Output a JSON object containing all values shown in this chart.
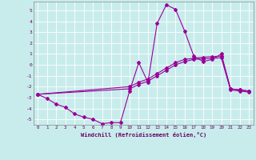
{
  "xlabel": "Windchill (Refroidissement éolien,°C)",
  "background_color": "#c8ecec",
  "line_color": "#990099",
  "grid_color": "#ffffff",
  "xlim": [
    -0.5,
    23.5
  ],
  "ylim": [
    -5.5,
    5.8
  ],
  "yticks": [
    -5,
    -4,
    -3,
    -2,
    -1,
    0,
    1,
    2,
    3,
    4,
    5
  ],
  "xticks": [
    0,
    1,
    2,
    3,
    4,
    5,
    6,
    7,
    8,
    9,
    10,
    11,
    12,
    13,
    14,
    15,
    16,
    17,
    18,
    19,
    20,
    21,
    22,
    23
  ],
  "series": [
    {
      "x": [
        0,
        1,
        2,
        3,
        4,
        5,
        6,
        7,
        8,
        9,
        10,
        11,
        12,
        13,
        14,
        15,
        16,
        17,
        18,
        19,
        20,
        21,
        22,
        23
      ],
      "y": [
        -2.7,
        -3.1,
        -3.6,
        -3.9,
        -4.5,
        -4.8,
        -5.0,
        -5.4,
        -5.3,
        -5.3,
        -2.4,
        0.2,
        -1.6,
        3.8,
        5.5,
        5.1,
        3.1,
        0.8,
        0.3,
        0.5,
        1.0,
        -2.2,
        -2.3,
        -2.4
      ]
    },
    {
      "x": [
        0,
        10,
        11,
        12,
        13,
        14,
        15,
        16,
        17,
        18,
        19,
        20,
        21,
        22,
        23
      ],
      "y": [
        -2.7,
        -2.0,
        -1.6,
        -1.3,
        -0.8,
        -0.3,
        0.2,
        0.5,
        0.6,
        0.7,
        0.75,
        0.8,
        -2.2,
        -2.3,
        -2.4
      ]
    },
    {
      "x": [
        0,
        10,
        11,
        12,
        13,
        14,
        15,
        16,
        17,
        18,
        19,
        20,
        21,
        22,
        23
      ],
      "y": [
        -2.7,
        -2.2,
        -1.8,
        -1.5,
        -1.0,
        -0.5,
        0.0,
        0.3,
        0.5,
        0.55,
        0.6,
        0.65,
        -2.3,
        -2.4,
        -2.5
      ]
    }
  ]
}
